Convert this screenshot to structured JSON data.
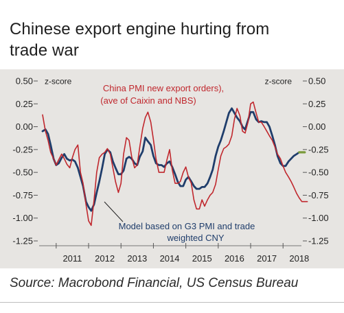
{
  "page": {
    "title_line1": "Chinese export engine hurting from",
    "title_line2": "trade war",
    "source": "Source: Macrobond Financial, US Census Bureau"
  },
  "colors": {
    "panel_background": "#e7e5e2",
    "china_pmi_series": "#c0272d",
    "model_series": "#1f3d6b",
    "model_projection": "#7a9a3a",
    "axis_text": "#222222"
  },
  "chart_data": {
    "type": "line",
    "title": "Chinese export engine hurting from trade war",
    "ylabel_left": "z-score",
    "ylabel_right": "z-score",
    "ylim": [
      -1.3,
      0.5
    ],
    "yticks": [
      0.5,
      0.25,
      0.0,
      -0.25,
      -0.5,
      -0.75,
      -1.0,
      -1.25
    ],
    "ytick_labels": [
      "0.50",
      "0.25",
      "0.00",
      "-0.25",
      "-0.50",
      "-0.75",
      "-1.00",
      "-1.25"
    ],
    "xlim": [
      2010.6,
      2019.1
    ],
    "xticks": [
      2011,
      2012,
      2013,
      2014,
      2015,
      2016,
      2017,
      2018
    ],
    "xtick_labels": [
      "2011",
      "2012",
      "2013",
      "2014",
      "2015",
      "2016",
      "2017",
      "2018"
    ],
    "grid": false,
    "legend": "annotations",
    "series": [
      {
        "name": "China PMI new export orders), (ave of Caixin and NBS)",
        "color": "#c0272d",
        "x": [
          2010.58,
          2010.67,
          2010.75,
          2010.83,
          2010.92,
          2011.0,
          2011.08,
          2011.17,
          2011.25,
          2011.33,
          2011.42,
          2011.5,
          2011.58,
          2011.67,
          2011.75,
          2011.83,
          2011.92,
          2012.0,
          2012.08,
          2012.17,
          2012.25,
          2012.33,
          2012.42,
          2012.5,
          2012.58,
          2012.67,
          2012.75,
          2012.83,
          2012.92,
          2013.0,
          2013.08,
          2013.17,
          2013.25,
          2013.33,
          2013.42,
          2013.5,
          2013.58,
          2013.67,
          2013.75,
          2013.83,
          2013.92,
          2014.0,
          2014.08,
          2014.17,
          2014.25,
          2014.33,
          2014.42,
          2014.5,
          2014.58,
          2014.67,
          2014.75,
          2014.83,
          2014.92,
          2015.0,
          2015.08,
          2015.17,
          2015.25,
          2015.33,
          2015.42,
          2015.5,
          2015.58,
          2015.67,
          2015.75,
          2015.83,
          2015.92,
          2016.0,
          2016.08,
          2016.17,
          2016.25,
          2016.33,
          2016.42,
          2016.5,
          2016.58,
          2016.67,
          2016.75,
          2016.83,
          2016.92,
          2017.0,
          2017.08,
          2017.17,
          2017.25,
          2017.33,
          2017.42,
          2017.5,
          2017.58,
          2017.67,
          2017.75,
          2017.83,
          2017.92,
          2018.0,
          2018.08,
          2018.17,
          2018.25,
          2018.33,
          2018.42,
          2018.5,
          2018.58,
          2018.67,
          2018.75
        ],
        "values": [
          0.13,
          -0.05,
          -0.15,
          -0.28,
          -0.35,
          -0.42,
          -0.36,
          -0.3,
          -0.35,
          -0.41,
          -0.45,
          -0.34,
          -0.25,
          -0.2,
          -0.5,
          -0.62,
          -0.85,
          -1.03,
          -1.08,
          -0.8,
          -0.5,
          -0.34,
          -0.3,
          -0.28,
          -0.24,
          -0.3,
          -0.45,
          -0.6,
          -0.72,
          -0.62,
          -0.3,
          -0.12,
          -0.15,
          -0.33,
          -0.45,
          -0.42,
          -0.22,
          -0.02,
          0.1,
          0.16,
          0.05,
          -0.14,
          -0.35,
          -0.5,
          -0.5,
          -0.5,
          -0.36,
          -0.25,
          -0.47,
          -0.62,
          -0.62,
          -0.6,
          -0.5,
          -0.44,
          -0.55,
          -0.62,
          -0.8,
          -0.9,
          -0.9,
          -0.8,
          -0.87,
          -0.8,
          -0.75,
          -0.72,
          -0.63,
          -0.47,
          -0.32,
          -0.24,
          -0.22,
          -0.19,
          -0.1,
          0.08,
          0.2,
          0.12,
          -0.05,
          -0.07,
          0.05,
          0.25,
          0.27,
          0.15,
          0.05,
          0.05,
          0.0,
          -0.05,
          -0.1,
          -0.15,
          -0.22,
          -0.3,
          -0.35,
          -0.43,
          -0.5,
          -0.55,
          -0.6,
          -0.66,
          -0.73,
          -0.78,
          -0.82,
          -0.82,
          -0.82
        ]
      },
      {
        "name": "Model based on G3 PMI and trade weighted CNY",
        "color": "#1f3d6b",
        "x": [
          2010.58,
          2010.67,
          2010.75,
          2010.83,
          2010.92,
          2011.0,
          2011.08,
          2011.17,
          2011.25,
          2011.33,
          2011.42,
          2011.5,
          2011.58,
          2011.67,
          2011.75,
          2011.83,
          2011.92,
          2012.0,
          2012.08,
          2012.17,
          2012.25,
          2012.33,
          2012.42,
          2012.5,
          2012.58,
          2012.67,
          2012.75,
          2012.83,
          2012.92,
          2013.0,
          2013.08,
          2013.17,
          2013.25,
          2013.33,
          2013.42,
          2013.5,
          2013.58,
          2013.67,
          2013.75,
          2013.83,
          2013.92,
          2014.0,
          2014.08,
          2014.17,
          2014.25,
          2014.33,
          2014.42,
          2014.5,
          2014.58,
          2014.67,
          2014.75,
          2014.83,
          2014.92,
          2015.0,
          2015.08,
          2015.17,
          2015.25,
          2015.33,
          2015.42,
          2015.5,
          2015.58,
          2015.67,
          2015.75,
          2015.83,
          2015.92,
          2016.0,
          2016.08,
          2016.17,
          2016.25,
          2016.33,
          2016.42,
          2016.5,
          2016.58,
          2016.67,
          2016.75,
          2016.83,
          2016.92,
          2017.0,
          2017.08,
          2017.17,
          2017.25,
          2017.33,
          2017.42,
          2017.5,
          2017.58,
          2017.67,
          2017.75,
          2017.83,
          2017.92,
          2018.0,
          2018.08,
          2018.17,
          2018.25,
          2018.33,
          2018.42,
          2018.5,
          2018.58,
          2018.67
        ],
        "values": [
          -0.05,
          -0.03,
          -0.08,
          -0.2,
          -0.35,
          -0.42,
          -0.4,
          -0.34,
          -0.3,
          -0.35,
          -0.37,
          -0.36,
          -0.38,
          -0.45,
          -0.55,
          -0.65,
          -0.82,
          -0.88,
          -0.92,
          -0.85,
          -0.72,
          -0.6,
          -0.45,
          -0.3,
          -0.25,
          -0.28,
          -0.38,
          -0.45,
          -0.52,
          -0.52,
          -0.48,
          -0.35,
          -0.33,
          -0.35,
          -0.4,
          -0.42,
          -0.33,
          -0.27,
          -0.12,
          -0.16,
          -0.2,
          -0.32,
          -0.4,
          -0.42,
          -0.42,
          -0.44,
          -0.4,
          -0.38,
          -0.44,
          -0.52,
          -0.6,
          -0.65,
          -0.65,
          -0.58,
          -0.55,
          -0.6,
          -0.65,
          -0.68,
          -0.68,
          -0.66,
          -0.66,
          -0.62,
          -0.55,
          -0.47,
          -0.32,
          -0.22,
          -0.15,
          -0.05,
          0.05,
          0.15,
          0.2,
          0.15,
          0.1,
          0.06,
          0.0,
          -0.03,
          0.07,
          0.16,
          0.16,
          0.08,
          0.05,
          0.06,
          0.05,
          0.05,
          0.0,
          -0.1,
          -0.2,
          -0.32,
          -0.4,
          -0.43,
          -0.43,
          -0.38,
          -0.35,
          -0.32,
          -0.3,
          -0.28,
          -0.28,
          -0.28
        ]
      }
    ],
    "annotations": [
      {
        "id": "china-pmi",
        "lines": [
          "China PMI new export orders),",
          "(ave of Caixin and NBS)"
        ],
        "color": "#c0272d"
      },
      {
        "id": "model",
        "lines": [
          "Model based on G3 PMI and trade",
          "weighted CNY"
        ],
        "color": "#1f3d6b"
      }
    ]
  }
}
